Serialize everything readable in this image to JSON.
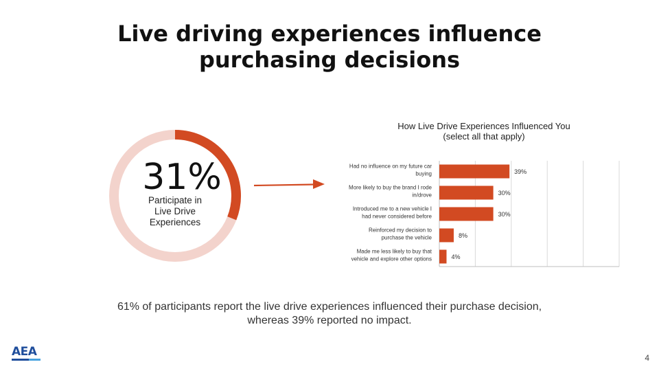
{
  "slide": {
    "title_line1": "Live driving experiences influence",
    "title_line2": "purchasing decisions",
    "page_number": "4",
    "footer_line1": "61% of participants report the live drive experiences influenced their purchase decision,",
    "footer_line2": "whereas 39% reported no impact.",
    "logo_text": "AEA"
  },
  "donut": {
    "value_label": "31%",
    "fraction": 0.31,
    "caption_line1": "Participate in",
    "caption_line2": "Live Drive",
    "caption_line3": "Experiences",
    "color_fill": "#d24a22",
    "color_track": "#f3d3cc"
  },
  "chart_data": {
    "type": "bar",
    "orientation": "horizontal",
    "title_line1": "How Live Drive Experiences Influenced You",
    "title_line2": "(select all that apply)",
    "categories": [
      [
        "Had no influence on my future car",
        "buying"
      ],
      [
        "More likely to buy the brand I rode",
        "in/drove"
      ],
      [
        "Introduced me to a new vehicle I",
        "had never considered before"
      ],
      [
        "Reinforced my decision to",
        "purchase the vehicle"
      ],
      [
        "Made me less likely to buy that",
        "vehicle and explore other options"
      ]
    ],
    "values": [
      39,
      30,
      30,
      8,
      4
    ],
    "value_labels": [
      "39%",
      "30%",
      "30%",
      "8%",
      "4%"
    ],
    "xlim": [
      0,
      100
    ],
    "grid": true,
    "bar_color": "#d24a22"
  }
}
